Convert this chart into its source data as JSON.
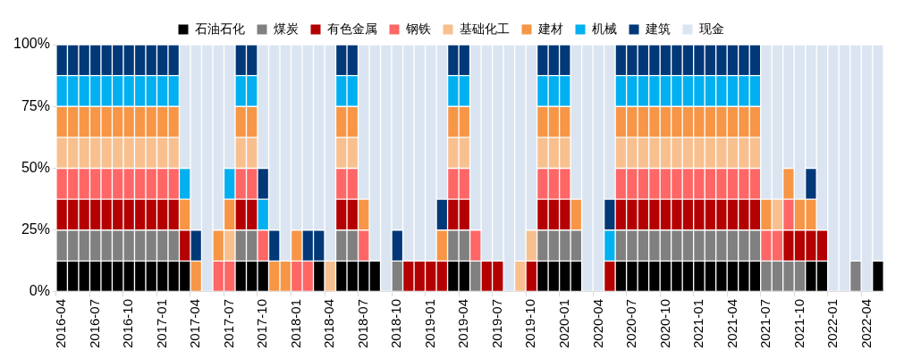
{
  "chart_data": {
    "type": "bar",
    "stacked": true,
    "legend": "top",
    "categories": [
      "2016-04",
      null,
      null,
      "2016-07",
      null,
      null,
      "2016-10",
      null,
      null,
      "2017-01",
      null,
      null,
      "2017-04",
      null,
      null,
      "2017-07",
      null,
      null,
      "2017-10",
      null,
      null,
      "2018-01",
      null,
      null,
      "2018-04",
      null,
      null,
      "2018-07",
      null,
      null,
      "2018-10",
      null,
      null,
      "2019-01",
      null,
      null,
      "2019-04",
      null,
      null,
      "2019-07",
      null,
      null,
      "2019-10",
      null,
      null,
      "2020-01",
      null,
      null,
      "2020-04",
      null,
      null,
      "2020-07",
      null,
      null,
      "2020-10",
      null,
      null,
      "2021-01",
      null,
      null,
      "2021-04",
      null,
      null,
      "2021-07",
      null,
      null,
      "2021-10",
      null,
      null,
      "2022-01",
      null,
      null,
      "2022-04",
      null
    ],
    "ylim": [
      0,
      100
    ],
    "yticks": [
      {
        "value": 0,
        "label": "0%"
      },
      {
        "value": 25,
        "label": "25%"
      },
      {
        "value": 50,
        "label": "50%"
      },
      {
        "value": 75,
        "label": "75%"
      },
      {
        "value": 100,
        "label": "100%"
      }
    ],
    "series": [
      {
        "name": "石油石化",
        "color": "#000000",
        "values": [
          12.5,
          12.5,
          12.5,
          12.5,
          12.5,
          12.5,
          12.5,
          12.5,
          12.5,
          12.5,
          12.5,
          12.5,
          null,
          null,
          null,
          null,
          12.5,
          12.5,
          12.5,
          null,
          null,
          null,
          null,
          12.5,
          null,
          12.5,
          12.5,
          12.5,
          12.5,
          null,
          null,
          null,
          null,
          null,
          null,
          12.5,
          12.5,
          null,
          null,
          null,
          null,
          null,
          null,
          12.5,
          12.5,
          12.5,
          12.5,
          null,
          null,
          null,
          12.5,
          12.5,
          12.5,
          12.5,
          12.5,
          12.5,
          12.5,
          12.5,
          12.5,
          12.5,
          12.5,
          12.5,
          12.5,
          null,
          null,
          null,
          null,
          12.5,
          12.5,
          null,
          null,
          null,
          null,
          12.5
        ]
      },
      {
        "name": "煤炭",
        "color": "#808080",
        "values": [
          12.5,
          12.5,
          12.5,
          12.5,
          12.5,
          12.5,
          12.5,
          12.5,
          12.5,
          12.5,
          12.5,
          null,
          null,
          null,
          null,
          null,
          12.5,
          12.5,
          null,
          null,
          null,
          null,
          null,
          null,
          null,
          12.5,
          12.5,
          null,
          null,
          null,
          12.5,
          null,
          null,
          null,
          null,
          12.5,
          12.5,
          12.5,
          null,
          null,
          null,
          null,
          null,
          12.5,
          12.5,
          12.5,
          12.5,
          null,
          null,
          null,
          12.5,
          12.5,
          12.5,
          12.5,
          12.5,
          12.5,
          12.5,
          12.5,
          12.5,
          12.5,
          12.5,
          12.5,
          12.5,
          12.5,
          12.5,
          12.5,
          12.5,
          null,
          null,
          null,
          null,
          12.5,
          null,
          null
        ]
      },
      {
        "name": "有色金属",
        "color": "#b40000",
        "values": [
          12.5,
          12.5,
          12.5,
          12.5,
          12.5,
          12.5,
          12.5,
          12.5,
          12.5,
          12.5,
          12.5,
          12.5,
          null,
          null,
          null,
          null,
          12.5,
          12.5,
          null,
          null,
          null,
          null,
          null,
          null,
          null,
          12.5,
          12.5,
          null,
          null,
          null,
          null,
          12.5,
          12.5,
          12.5,
          12.5,
          12.5,
          12.5,
          null,
          12.5,
          12.5,
          null,
          null,
          12.5,
          12.5,
          12.5,
          12.5,
          null,
          null,
          null,
          12.5,
          12.5,
          12.5,
          12.5,
          12.5,
          12.5,
          12.5,
          12.5,
          12.5,
          12.5,
          12.5,
          12.5,
          12.5,
          12.5,
          null,
          null,
          12.5,
          12.5,
          12.5,
          12.5,
          null,
          null,
          null,
          null,
          null
        ]
      },
      {
        "name": "钢铁",
        "color": "#ff6666",
        "values": [
          12.5,
          12.5,
          12.5,
          12.5,
          12.5,
          12.5,
          12.5,
          12.5,
          12.5,
          12.5,
          12.5,
          null,
          null,
          null,
          12.5,
          12.5,
          12.5,
          12.5,
          12.5,
          null,
          null,
          12.5,
          12.5,
          null,
          null,
          12.5,
          12.5,
          12.5,
          null,
          null,
          null,
          null,
          null,
          null,
          null,
          12.5,
          12.5,
          12.5,
          null,
          null,
          null,
          null,
          null,
          12.5,
          12.5,
          12.5,
          null,
          null,
          null,
          null,
          12.5,
          12.5,
          12.5,
          12.5,
          12.5,
          12.5,
          12.5,
          12.5,
          12.5,
          12.5,
          12.5,
          12.5,
          12.5,
          12.5,
          12.5,
          12.5,
          null,
          null,
          null,
          null,
          null,
          null,
          null,
          null
        ]
      },
      {
        "name": "基础化工",
        "color": "#f8c08f",
        "values": [
          12.5,
          12.5,
          12.5,
          12.5,
          12.5,
          12.5,
          12.5,
          12.5,
          12.5,
          12.5,
          12.5,
          null,
          null,
          null,
          null,
          12.5,
          12.5,
          12.5,
          null,
          null,
          null,
          null,
          null,
          null,
          12.5,
          12.5,
          12.5,
          null,
          null,
          null,
          null,
          null,
          null,
          null,
          null,
          12.5,
          12.5,
          null,
          null,
          null,
          null,
          12.5,
          12.5,
          12.5,
          12.5,
          12.5,
          null,
          null,
          null,
          null,
          12.5,
          12.5,
          12.5,
          12.5,
          12.5,
          12.5,
          12.5,
          12.5,
          12.5,
          12.5,
          12.5,
          12.5,
          12.5,
          null,
          12.5,
          null,
          null,
          null,
          null,
          null,
          null,
          null,
          null,
          null
        ]
      },
      {
        "name": "建材",
        "color": "#f79646",
        "values": [
          12.5,
          12.5,
          12.5,
          12.5,
          12.5,
          12.5,
          12.5,
          12.5,
          12.5,
          12.5,
          12.5,
          12.5,
          12.5,
          null,
          12.5,
          12.5,
          12.5,
          12.5,
          null,
          12.5,
          12.5,
          12.5,
          null,
          null,
          null,
          12.5,
          12.5,
          12.5,
          null,
          null,
          null,
          null,
          null,
          null,
          12.5,
          12.5,
          12.5,
          null,
          null,
          null,
          null,
          null,
          null,
          12.5,
          12.5,
          12.5,
          12.5,
          null,
          null,
          null,
          12.5,
          12.5,
          12.5,
          12.5,
          12.5,
          12.5,
          12.5,
          12.5,
          12.5,
          12.5,
          12.5,
          12.5,
          12.5,
          12.5,
          null,
          12.5,
          12.5,
          12.5,
          null,
          null,
          null,
          null,
          null,
          null
        ]
      },
      {
        "name": "机械",
        "color": "#00b0f0",
        "values": [
          12.5,
          12.5,
          12.5,
          12.5,
          12.5,
          12.5,
          12.5,
          12.5,
          12.5,
          12.5,
          12.5,
          12.5,
          null,
          null,
          null,
          12.5,
          12.5,
          12.5,
          12.5,
          null,
          null,
          null,
          null,
          null,
          null,
          12.5,
          12.5,
          null,
          null,
          null,
          null,
          null,
          null,
          null,
          null,
          12.5,
          12.5,
          null,
          null,
          null,
          null,
          null,
          null,
          12.5,
          12.5,
          12.5,
          null,
          null,
          null,
          12.5,
          12.5,
          12.5,
          12.5,
          12.5,
          12.5,
          12.5,
          12.5,
          12.5,
          12.5,
          12.5,
          12.5,
          12.5,
          12.5,
          null,
          null,
          null,
          null,
          null,
          null,
          null,
          null,
          null,
          null,
          null
        ]
      },
      {
        "name": "建筑",
        "color": "#003878",
        "values": [
          12.5,
          12.5,
          12.5,
          12.5,
          12.5,
          12.5,
          12.5,
          12.5,
          12.5,
          12.5,
          12.5,
          null,
          12.5,
          null,
          null,
          null,
          12.5,
          12.5,
          12.5,
          12.5,
          null,
          null,
          12.5,
          12.5,
          null,
          12.5,
          12.5,
          null,
          null,
          null,
          12.5,
          null,
          null,
          null,
          12.5,
          12.5,
          12.5,
          null,
          null,
          null,
          null,
          null,
          null,
          12.5,
          12.5,
          12.5,
          null,
          null,
          null,
          12.5,
          12.5,
          12.5,
          12.5,
          12.5,
          12.5,
          12.5,
          12.5,
          12.5,
          12.5,
          12.5,
          12.5,
          12.5,
          12.5,
          null,
          null,
          null,
          null,
          12.5,
          null,
          null,
          null,
          null,
          null,
          null
        ]
      },
      {
        "name": "现金",
        "color": "#dbe5f1",
        "values": [
          null,
          null,
          null,
          null,
          null,
          null,
          null,
          null,
          null,
          null,
          null,
          50,
          75,
          100,
          75,
          50,
          null,
          null,
          50,
          75,
          87.5,
          75,
          75,
          75,
          87.5,
          null,
          null,
          62.5,
          87.5,
          100,
          75,
          87.5,
          87.5,
          87.5,
          62.5,
          null,
          null,
          75,
          87.5,
          87.5,
          100,
          87.5,
          75,
          null,
          null,
          null,
          62.5,
          100,
          100,
          62.5,
          null,
          null,
          null,
          null,
          null,
          null,
          null,
          null,
          null,
          null,
          null,
          null,
          null,
          62.5,
          62.5,
          50,
          62.5,
          50,
          75,
          100,
          100,
          87.5,
          100,
          87.5
        ]
      }
    ]
  }
}
